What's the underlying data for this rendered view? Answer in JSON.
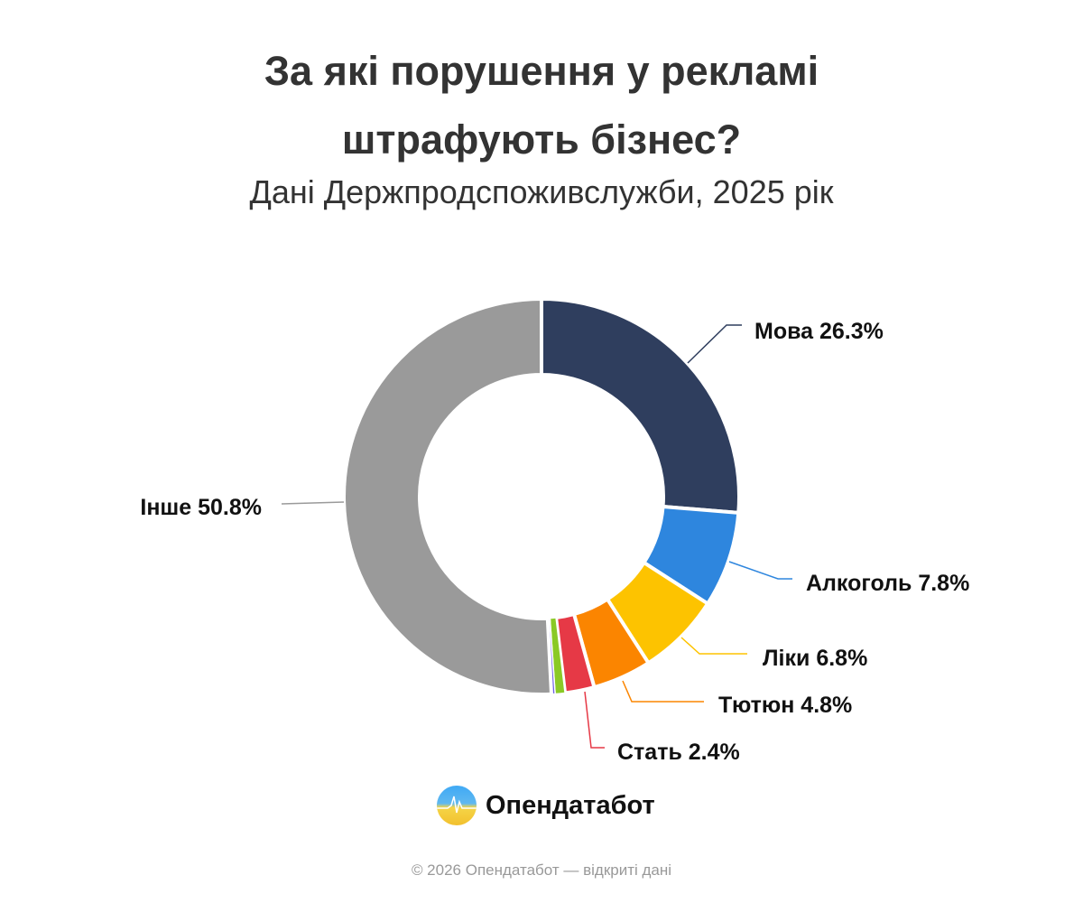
{
  "chart_data": {
    "type": "pie",
    "variant": "donut",
    "title_lines": [
      "За які порушення у рекламі",
      "штрафують бізнес?"
    ],
    "subtitle": "Дані Держпродспоживслужби, 2025 рік",
    "start": "top",
    "direction": "clockwise",
    "slices": [
      {
        "name": "Мова",
        "value": 26.3,
        "label": "Мова 26.3%",
        "color": "#2f3e5e"
      },
      {
        "name": "Алкоголь",
        "value": 7.8,
        "label": "Алкоголь 7.8%",
        "color": "#2e86de"
      },
      {
        "name": "Ліки",
        "value": 6.8,
        "label": "Ліки 6.8%",
        "color": "#fdc300"
      },
      {
        "name": "Тютюн",
        "value": 4.8,
        "label": "Тютюн 4.8%",
        "color": "#fb8500"
      },
      {
        "name": "Стать",
        "value": 2.4,
        "label": "Стать 2.4%",
        "color": "#e63946"
      },
      {
        "value": 0.8,
        "color": "#8ac926"
      },
      {
        "value": 0.3,
        "color": "#6c5ce7"
      },
      {
        "name": "Інше",
        "value": 50.8,
        "label": "Інше 50.8%",
        "color": "#9a9a9a"
      }
    ]
  },
  "branding": {
    "logo_text": "Опендатабот"
  },
  "footer": "© 2026 Опендатабот — відкриті дані"
}
